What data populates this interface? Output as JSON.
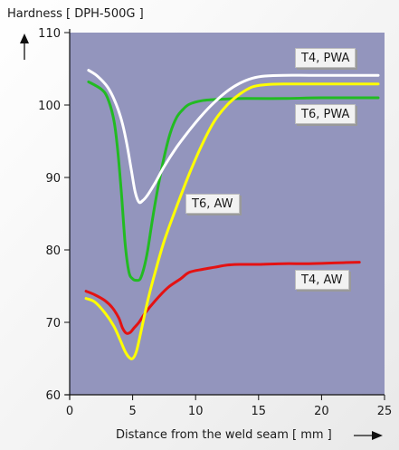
{
  "colors": {
    "plot_background": "#9395bd",
    "page_background_top": "#ffffff",
    "page_background_bottom": "#e9e9e9",
    "t4_pwa": "#ffffff",
    "t6_pwa": "#22bb22",
    "t6_aw": "#ffff00",
    "t4_aw": "#e41212"
  },
  "chart_data": {
    "type": "line",
    "title": "",
    "ylabel": "Hardness [ DPH-500G ]",
    "xlabel": "Distance from the weld seam [ mm ]",
    "xlim": [
      0,
      25
    ],
    "ylim": [
      60,
      110
    ],
    "x_ticks": [
      0,
      5,
      10,
      15,
      20,
      25
    ],
    "y_ticks": [
      60,
      70,
      80,
      90,
      100,
      110
    ],
    "grid": false,
    "legend": "inline labels",
    "series": [
      {
        "name": "T4, PWA",
        "color": "#ffffff",
        "x": [
          1.5,
          2.2,
          3.0,
          3.6,
          4.1,
          4.5,
          4.9,
          5.2,
          5.5,
          5.8,
          6.2,
          6.8,
          7.5,
          8.5,
          9.5,
          10.5,
          11.5,
          12.5,
          13.5,
          14.5,
          15.5,
          17.0,
          19.0,
          21.0,
          23.0,
          24.5
        ],
        "y": [
          104.8,
          104.0,
          102.5,
          100.5,
          98.0,
          95.0,
          91.0,
          88.0,
          86.6,
          86.8,
          87.6,
          89.3,
          91.5,
          94.2,
          96.5,
          98.6,
          100.4,
          101.9,
          103.0,
          103.7,
          104.0,
          104.1,
          104.1,
          104.1,
          104.1,
          104.1
        ]
      },
      {
        "name": "T6, PWA",
        "color": "#22bb22",
        "x": [
          1.5,
          2.5,
          3.0,
          3.5,
          3.8,
          4.1,
          4.4,
          4.7,
          5.0,
          5.3,
          5.6,
          5.9,
          6.2,
          6.6,
          7.0,
          7.5,
          8.0,
          8.5,
          9.0,
          9.5,
          10.5,
          12.0,
          14.0,
          17.0,
          20.0,
          24.5
        ],
        "y": [
          103.2,
          102.2,
          101.0,
          98.0,
          94.0,
          88.0,
          81.0,
          77.0,
          76.0,
          75.8,
          76.0,
          77.5,
          80.0,
          84.5,
          88.5,
          92.8,
          96.2,
          98.3,
          99.4,
          100.1,
          100.6,
          100.8,
          100.9,
          100.9,
          101.0,
          101.0
        ]
      },
      {
        "name": "T6, AW",
        "color": "#ffff00",
        "x": [
          1.3,
          2.0,
          2.8,
          3.5,
          4.0,
          4.4,
          4.7,
          5.0,
          5.3,
          5.7,
          6.2,
          6.8,
          7.5,
          8.5,
          9.5,
          10.5,
          11.5,
          12.5,
          13.5,
          14.5,
          15.5,
          17.0,
          19.0,
          21.0,
          23.0,
          24.5
        ],
        "y": [
          73.3,
          72.8,
          71.3,
          69.5,
          67.6,
          66.0,
          65.2,
          65.0,
          66.0,
          69.0,
          73.0,
          77.0,
          81.2,
          86.0,
          90.5,
          94.5,
          97.8,
          100.0,
          101.5,
          102.5,
          102.8,
          102.9,
          102.9,
          102.9,
          102.9,
          102.9
        ]
      },
      {
        "name": "T4, AW",
        "color": "#e41212",
        "x": [
          1.3,
          2.0,
          2.8,
          3.4,
          3.9,
          4.2,
          4.5,
          4.8,
          5.1,
          5.5,
          6.0,
          6.8,
          7.8,
          8.8,
          9.5,
          10.5,
          11.5,
          12.5,
          13.5,
          15.0,
          17.0,
          19.0,
          21.0,
          23.0
        ],
        "y": [
          74.3,
          73.8,
          73.0,
          72.0,
          70.6,
          69.2,
          68.5,
          68.6,
          69.2,
          70.0,
          71.3,
          73.0,
          74.8,
          76.0,
          76.9,
          77.3,
          77.6,
          77.9,
          78.0,
          78.0,
          78.1,
          78.1,
          78.2,
          78.3
        ]
      }
    ],
    "annotations": [
      {
        "text": "T4, PWA",
        "series": "T4, PWA"
      },
      {
        "text": "T6, PWA",
        "series": "T6, PWA"
      },
      {
        "text": "T6, AW",
        "series": "T6, AW"
      },
      {
        "text": "T4, AW",
        "series": "T4, AW"
      }
    ]
  }
}
